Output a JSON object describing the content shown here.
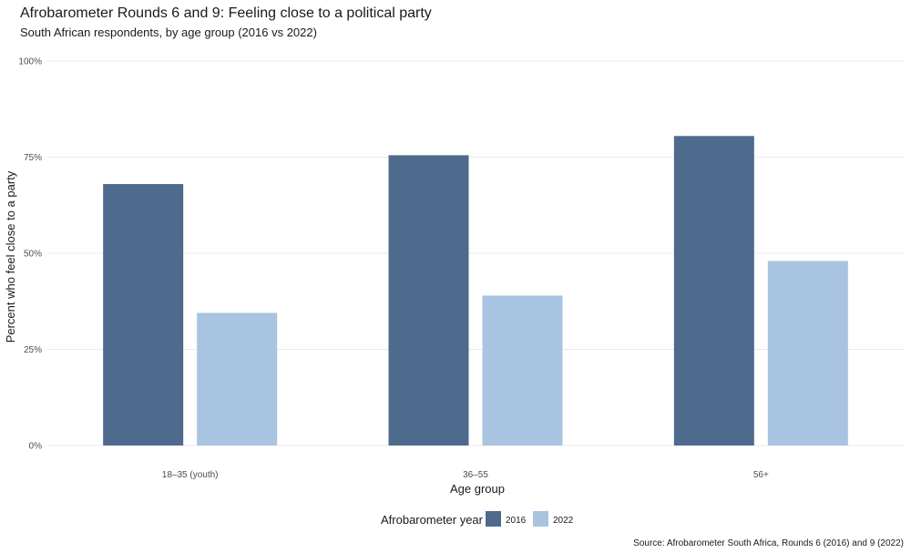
{
  "chart_data": {
    "type": "bar",
    "title": "Afrobarometer Rounds 6 and 9: Feeling close to a political party",
    "subtitle": "South African respondents, by age group (2016 vs 2022)",
    "xlabel": "Age group",
    "ylabel": "Percent who feel close to a party",
    "categories": [
      "18–35 (youth)",
      "36–55",
      "56+"
    ],
    "series": [
      {
        "name": "2016",
        "values": [
          68,
          75.5,
          80.5
        ],
        "color": "#4e6a8c"
      },
      {
        "name": "2022",
        "values": [
          34.5,
          39,
          48
        ],
        "color": "#a8c4e1"
      }
    ],
    "ylim": [
      0,
      100
    ],
    "yticks": [
      0,
      25,
      50,
      75,
      100
    ],
    "ytick_labels": [
      "0%",
      "25%",
      "50%",
      "75%",
      "100%"
    ],
    "grid": true,
    "legend": {
      "title": "Afrobarometer year",
      "placement": "bottom"
    },
    "caption": "Source: Afrobarometer South Africa, Rounds 6 (2016) and 9 (2022)"
  }
}
